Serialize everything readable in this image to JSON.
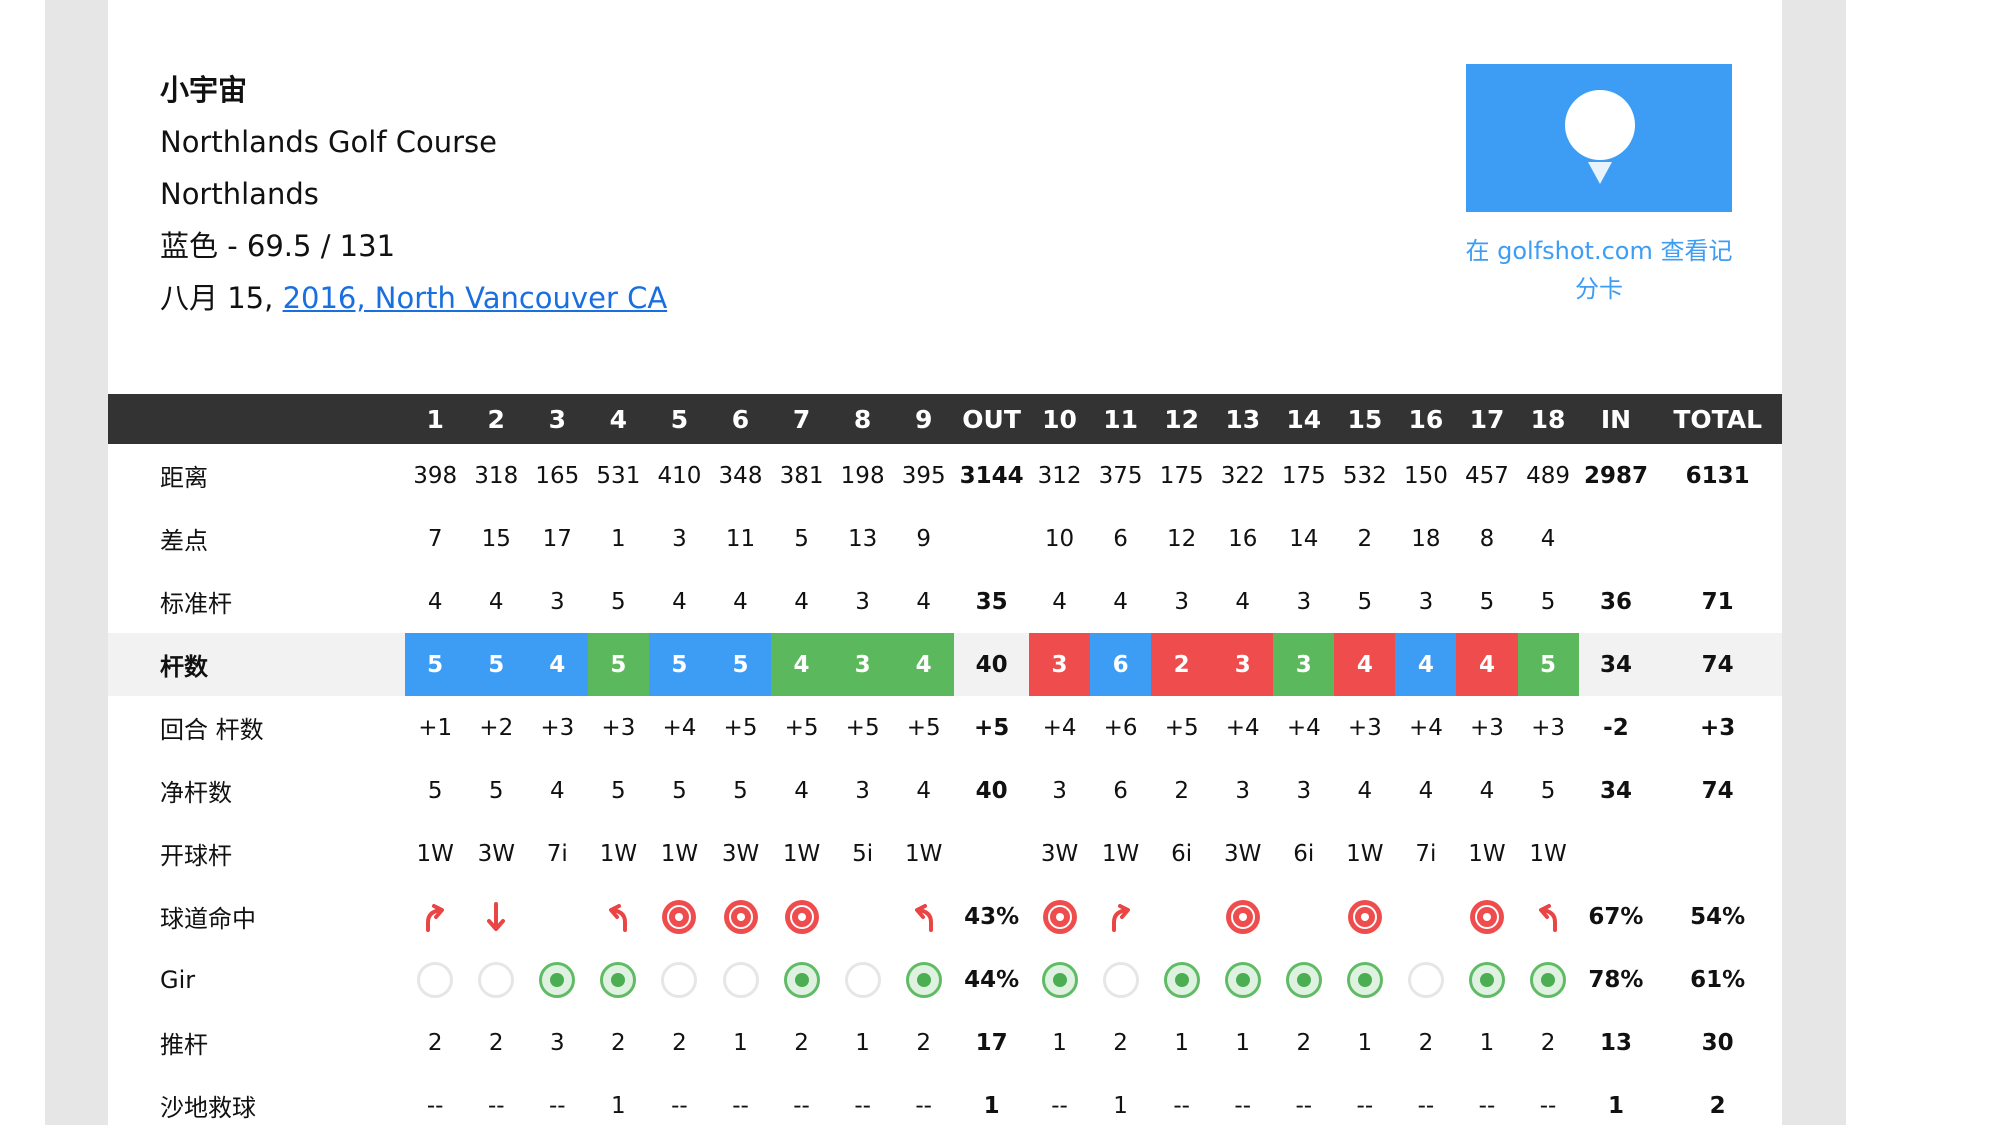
{
  "player": "小宇宙",
  "course": "Northlands Golf Course",
  "club": "Northlands",
  "tee": "蓝色 - 69.5 / 131",
  "date_prefix": "八月 15, ",
  "date_link": "2016, North Vancouver CA",
  "view_link": "在 golfshot.com 查看记分卡",
  "colors": {
    "eagle": "#3d9df5",
    "par": "#5cb85c",
    "birdie": "#ef4d4d",
    "double_birdie": "#777777",
    "header": "#333333",
    "link": "#1a6fe0"
  },
  "table": {
    "header": [
      "1",
      "2",
      "3",
      "4",
      "5",
      "6",
      "7",
      "8",
      "9",
      "OUT",
      "10",
      "11",
      "12",
      "13",
      "14",
      "15",
      "16",
      "17",
      "18",
      "IN",
      "TOTAL"
    ],
    "rows": {
      "distance": {
        "label": "距离",
        "values": [
          "398",
          "318",
          "165",
          "531",
          "410",
          "348",
          "381",
          "198",
          "395",
          "3144",
          "312",
          "375",
          "175",
          "322",
          "175",
          "532",
          "150",
          "457",
          "489",
          "2987",
          "6131"
        ]
      },
      "handicap": {
        "label": "差点",
        "values": [
          "7",
          "15",
          "17",
          "1",
          "3",
          "11",
          "5",
          "13",
          "9",
          "",
          "10",
          "6",
          "12",
          "16",
          "14",
          "2",
          "18",
          "8",
          "4",
          "",
          ""
        ]
      },
      "par": {
        "label": "标准杆",
        "values": [
          "4",
          "4",
          "3",
          "5",
          "4",
          "4",
          "4",
          "3",
          "4",
          "35",
          "4",
          "4",
          "3",
          "4",
          "3",
          "5",
          "3",
          "5",
          "5",
          "36",
          "71"
        ]
      },
      "strokes": {
        "label": "杆数",
        "values": [
          "5",
          "5",
          "4",
          "5",
          "5",
          "5",
          "4",
          "3",
          "4",
          "40",
          "3",
          "6",
          "2",
          "3",
          "3",
          "4",
          "4",
          "4",
          "5",
          "34",
          "74"
        ]
      },
      "running": {
        "label": "回合 杆数",
        "values": [
          "+1",
          "+2",
          "+3",
          "+3",
          "+4",
          "+5",
          "+5",
          "+5",
          "+5",
          "+5",
          "+4",
          "+6",
          "+5",
          "+4",
          "+4",
          "+3",
          "+4",
          "+3",
          "+3",
          "-2",
          "+3"
        ]
      },
      "net": {
        "label": "净杆数",
        "values": [
          "5",
          "5",
          "4",
          "5",
          "5",
          "5",
          "4",
          "3",
          "4",
          "40",
          "3",
          "6",
          "2",
          "3",
          "3",
          "4",
          "4",
          "4",
          "5",
          "34",
          "74"
        ]
      },
      "club": {
        "label": "开球杆",
        "values": [
          "1W",
          "3W",
          "7i",
          "1W",
          "1W",
          "3W",
          "1W",
          "5i",
          "1W",
          "",
          "3W",
          "1W",
          "6i",
          "3W",
          "6i",
          "1W",
          "7i",
          "1W",
          "1W",
          "",
          ""
        ]
      },
      "fairway": {
        "label": "球道命中",
        "values": [
          "43%",
          "67%",
          "54%"
        ],
        "marks": [
          "right",
          "short",
          "",
          "left",
          "hit",
          "hit",
          "hit",
          "",
          "left",
          "",
          "hit",
          "right",
          "",
          "hit",
          "",
          "hit",
          "",
          "hit",
          "left",
          "",
          ""
        ]
      },
      "gir": {
        "label": "Gir",
        "values": [
          "44%",
          "78%",
          "61%"
        ],
        "marks": [
          "miss",
          "miss",
          "hit",
          "hit",
          "miss",
          "miss",
          "hit",
          "miss",
          "hit",
          "",
          "hit",
          "miss",
          "hit",
          "hit",
          "hit",
          "hit",
          "miss",
          "hit",
          "hit",
          "",
          ""
        ]
      },
      "putts": {
        "label": "推杆",
        "values": [
          "2",
          "2",
          "3",
          "2",
          "2",
          "1",
          "2",
          "1",
          "2",
          "17",
          "1",
          "2",
          "1",
          "1",
          "2",
          "1",
          "2",
          "1",
          "2",
          "13",
          "30"
        ]
      },
      "sand": {
        "label": "沙地救球",
        "values": [
          "--",
          "--",
          "--",
          "1",
          "--",
          "--",
          "--",
          "--",
          "--",
          "1",
          "--",
          "1",
          "--",
          "--",
          "--",
          "--",
          "--",
          "--",
          "--",
          "1",
          "2"
        ]
      }
    }
  }
}
